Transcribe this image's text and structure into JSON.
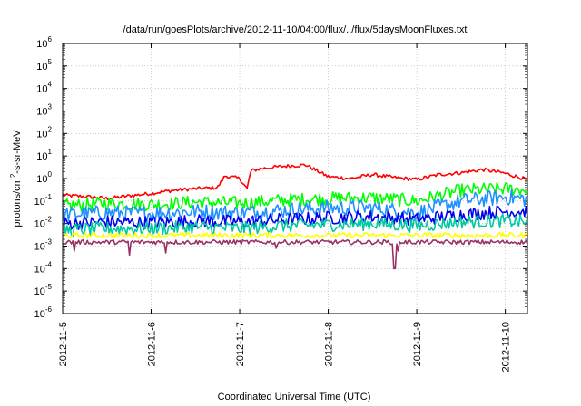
{
  "chart_data": {
    "type": "line",
    "title": "/data/run/goesPlots/archive/2012-11-10/04:00/flux/../flux/5daysMoonFluxes.txt",
    "xlabel": "Coordinated Universal Time (UTC)",
    "ylabel_parts": [
      "protons/cm",
      "2",
      "-s-sr-MeV"
    ],
    "xlim": [
      "2012-11-05",
      "2012-11-10 06:00"
    ],
    "ylim": [
      1e-06,
      1000000.0
    ],
    "yscale": "log",
    "grid": true,
    "x_ticks": [
      "2012-11-5",
      "2012-11-6",
      "2012-11-7",
      "2012-11-8",
      "2012-11-9",
      "2012-11-10"
    ],
    "y_ticks": [
      {
        "base": "10",
        "exp": "-6"
      },
      {
        "base": "10",
        "exp": "-5"
      },
      {
        "base": "10",
        "exp": "-4"
      },
      {
        "base": "10",
        "exp": "-3"
      },
      {
        "base": "10",
        "exp": "-2"
      },
      {
        "base": "10",
        "exp": "-1"
      },
      {
        "base": "10",
        "exp": "0"
      },
      {
        "base": "10",
        "exp": "1"
      },
      {
        "base": "10",
        "exp": "2"
      },
      {
        "base": "10",
        "exp": "3"
      },
      {
        "base": "10",
        "exp": "4"
      },
      {
        "base": "10",
        "exp": "5"
      },
      {
        "base": "10",
        "exp": "6"
      }
    ],
    "series": [
      {
        "color": "#ff0000",
        "noise": 0.08,
        "x": [
          "2012-11-05 00:00",
          "2012-11-05 06:00",
          "2012-11-05 12:00",
          "2012-11-05 18:00",
          "2012-11-06 00:00",
          "2012-11-06 06:00",
          "2012-11-06 12:00",
          "2012-11-06 18:00",
          "2012-11-06 20:00",
          "2012-11-07 00:00",
          "2012-11-07 02:00",
          "2012-11-07 03:00",
          "2012-11-07 06:00",
          "2012-11-07 12:00",
          "2012-11-07 18:00",
          "2012-11-08 00:00",
          "2012-11-08 06:00",
          "2012-11-08 12:00",
          "2012-11-08 18:00",
          "2012-11-09 00:00",
          "2012-11-09 06:00",
          "2012-11-09 12:00",
          "2012-11-09 18:00",
          "2012-11-10 00:00",
          "2012-11-10 06:00"
        ],
        "y": [
          0.18,
          0.16,
          0.13,
          0.17,
          0.22,
          0.3,
          0.35,
          0.4,
          1.3,
          1.0,
          0.35,
          2.2,
          2.8,
          3.5,
          4.0,
          1.2,
          1.0,
          1.5,
          1.1,
          0.9,
          1.5,
          1.8,
          2.5,
          1.7,
          0.9
        ]
      },
      {
        "color": "#00ff00",
        "noise": 0.3,
        "x": [
          "2012-11-05 00:00",
          "2012-11-05 12:00",
          "2012-11-06 00:00",
          "2012-11-06 12:00",
          "2012-11-07 00:00",
          "2012-11-07 12:00",
          "2012-11-08 00:00",
          "2012-11-08 12:00",
          "2012-11-09 00:00",
          "2012-11-09 12:00",
          "2012-11-10 00:00",
          "2012-11-10 06:00"
        ],
        "y": [
          0.06,
          0.08,
          0.07,
          0.09,
          0.08,
          0.11,
          0.13,
          0.14,
          0.1,
          0.3,
          0.35,
          0.32
        ]
      },
      {
        "color": "#1e90ff",
        "noise": 0.35,
        "x": [
          "2012-11-05 00:00",
          "2012-11-05 12:00",
          "2012-11-06 00:00",
          "2012-11-06 12:00",
          "2012-11-07 00:00",
          "2012-11-07 12:00",
          "2012-11-08 00:00",
          "2012-11-08 12:00",
          "2012-11-09 00:00",
          "2012-11-09 12:00",
          "2012-11-10 00:00",
          "2012-11-10 06:00"
        ],
        "y": [
          0.025,
          0.03,
          0.028,
          0.035,
          0.03,
          0.04,
          0.05,
          0.05,
          0.03,
          0.1,
          0.15,
          0.12
        ]
      },
      {
        "color": "#0000ee",
        "noise": 0.3,
        "x": [
          "2012-11-05 00:00",
          "2012-11-05 12:00",
          "2012-11-06 00:00",
          "2012-11-06 12:00",
          "2012-11-07 00:00",
          "2012-11-07 12:00",
          "2012-11-08 00:00",
          "2012-11-08 12:00",
          "2012-11-09 00:00",
          "2012-11-09 12:00",
          "2012-11-10 00:00",
          "2012-11-10 06:00"
        ],
        "y": [
          0.01,
          0.012,
          0.011,
          0.013,
          0.012,
          0.015,
          0.018,
          0.02,
          0.015,
          0.025,
          0.035,
          0.035
        ]
      },
      {
        "color": "#00c8a0",
        "noise": 0.3,
        "x": [
          "2012-11-05 00:00",
          "2012-11-05 12:00",
          "2012-11-06 00:00",
          "2012-11-06 12:00",
          "2012-11-07 00:00",
          "2012-11-07 12:00",
          "2012-11-08 00:00",
          "2012-11-08 12:00",
          "2012-11-09 00:00",
          "2012-11-09 12:00",
          "2012-11-10 00:00",
          "2012-11-10 06:00"
        ],
        "y": [
          0.005,
          0.006,
          0.006,
          0.007,
          0.006,
          0.008,
          0.009,
          0.01,
          0.008,
          0.012,
          0.013,
          0.012
        ]
      },
      {
        "color": "#ffff00",
        "noise": 0.12,
        "x": [
          "2012-11-05 00:00",
          "2012-11-06 00:00",
          "2012-11-07 00:00",
          "2012-11-08 00:00",
          "2012-11-09 00:00",
          "2012-11-10 00:00",
          "2012-11-10 06:00"
        ],
        "y": [
          0.003,
          0.003,
          0.003,
          0.003,
          0.003,
          0.003,
          0.003
        ]
      },
      {
        "color": "#993366",
        "noise": 0.1,
        "x": [
          "2012-11-05 00:00",
          "2012-11-06 00:00",
          "2012-11-07 00:00",
          "2012-11-08 00:00",
          "2012-11-09 00:00",
          "2012-11-10 00:00",
          "2012-11-10 06:00"
        ],
        "y": [
          0.0015,
          0.0015,
          0.0015,
          0.0015,
          0.0015,
          0.0015,
          0.0015
        ],
        "dips": [
          [
            "2012-11-05 03:00",
            0.0006
          ],
          [
            "2012-11-05 18:00",
            0.0004
          ],
          [
            "2012-11-06 04:00",
            0.0005
          ],
          [
            "2012-11-07 10:00",
            0.0008
          ],
          [
            "2012-11-08 18:00",
            0.0001
          ],
          [
            "2012-11-08 19:00",
            0.0006
          ]
        ]
      }
    ]
  }
}
